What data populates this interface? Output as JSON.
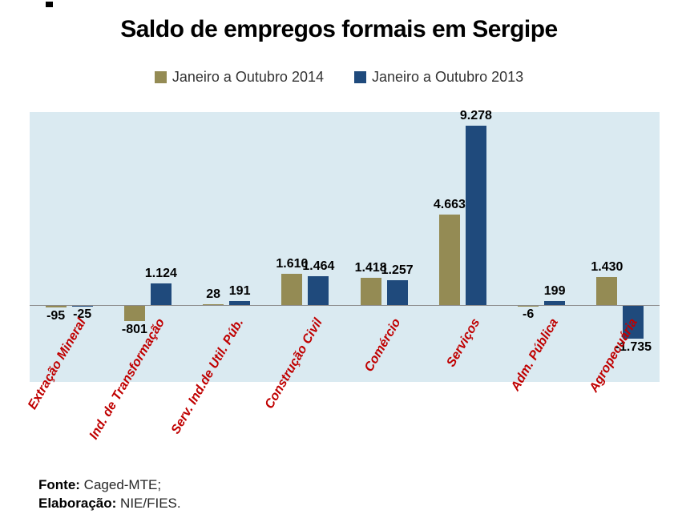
{
  "title": "Saldo de empregos formais em Sergipe",
  "legend": [
    {
      "label": "Janeiro a Outubro 2014",
      "color": "#948B54"
    },
    {
      "label": "Janeiro a Outubro 2013",
      "color": "#1F4A7C"
    }
  ],
  "footer": {
    "fonte_label": "Fonte:",
    "fonte_value": "Caged-MTE;",
    "elaboracao_label": "Elaboração:",
    "elaboracao_value": "NIE/FIES."
  },
  "chart_data": {
    "type": "bar",
    "title": "Saldo de empregos formais em Sergipe",
    "categories": [
      "Extração Mineral",
      "Ind. de Transformação",
      "Serv. Ind.de Util. Púb.",
      "Construção Civil",
      "Comércio",
      "Serviços",
      "Adm. Pública",
      "Agropecuária"
    ],
    "series": [
      {
        "name": "Janeiro a Outubro 2014",
        "color": "#948B54",
        "values": [
          -95,
          -801,
          28,
          1610,
          1418,
          4663,
          -6,
          1430
        ]
      },
      {
        "name": "Janeiro a Outubro 2013",
        "color": "#1F4A7C",
        "values": [
          -25,
          1124,
          191,
          1464,
          1257,
          9278,
          199,
          -1735
        ]
      }
    ],
    "value_labels": [
      [
        "-95",
        "-801",
        "28",
        "1.610",
        "1.418",
        "4.663",
        "-6",
        "1.430"
      ],
      [
        "-25",
        "1.124",
        "191",
        "1.464",
        "1.257",
        "9.278",
        "199",
        "-1.735"
      ]
    ],
    "ylim": [
      -4000,
      10000
    ],
    "grid": false,
    "legend_position": "top",
    "plot_bg_color": "#DAEAF1",
    "axis_line_color": "#8C8C8C",
    "category_label_color": "#C00000",
    "number_format": "thousands separated by dot (pt-BR)"
  }
}
